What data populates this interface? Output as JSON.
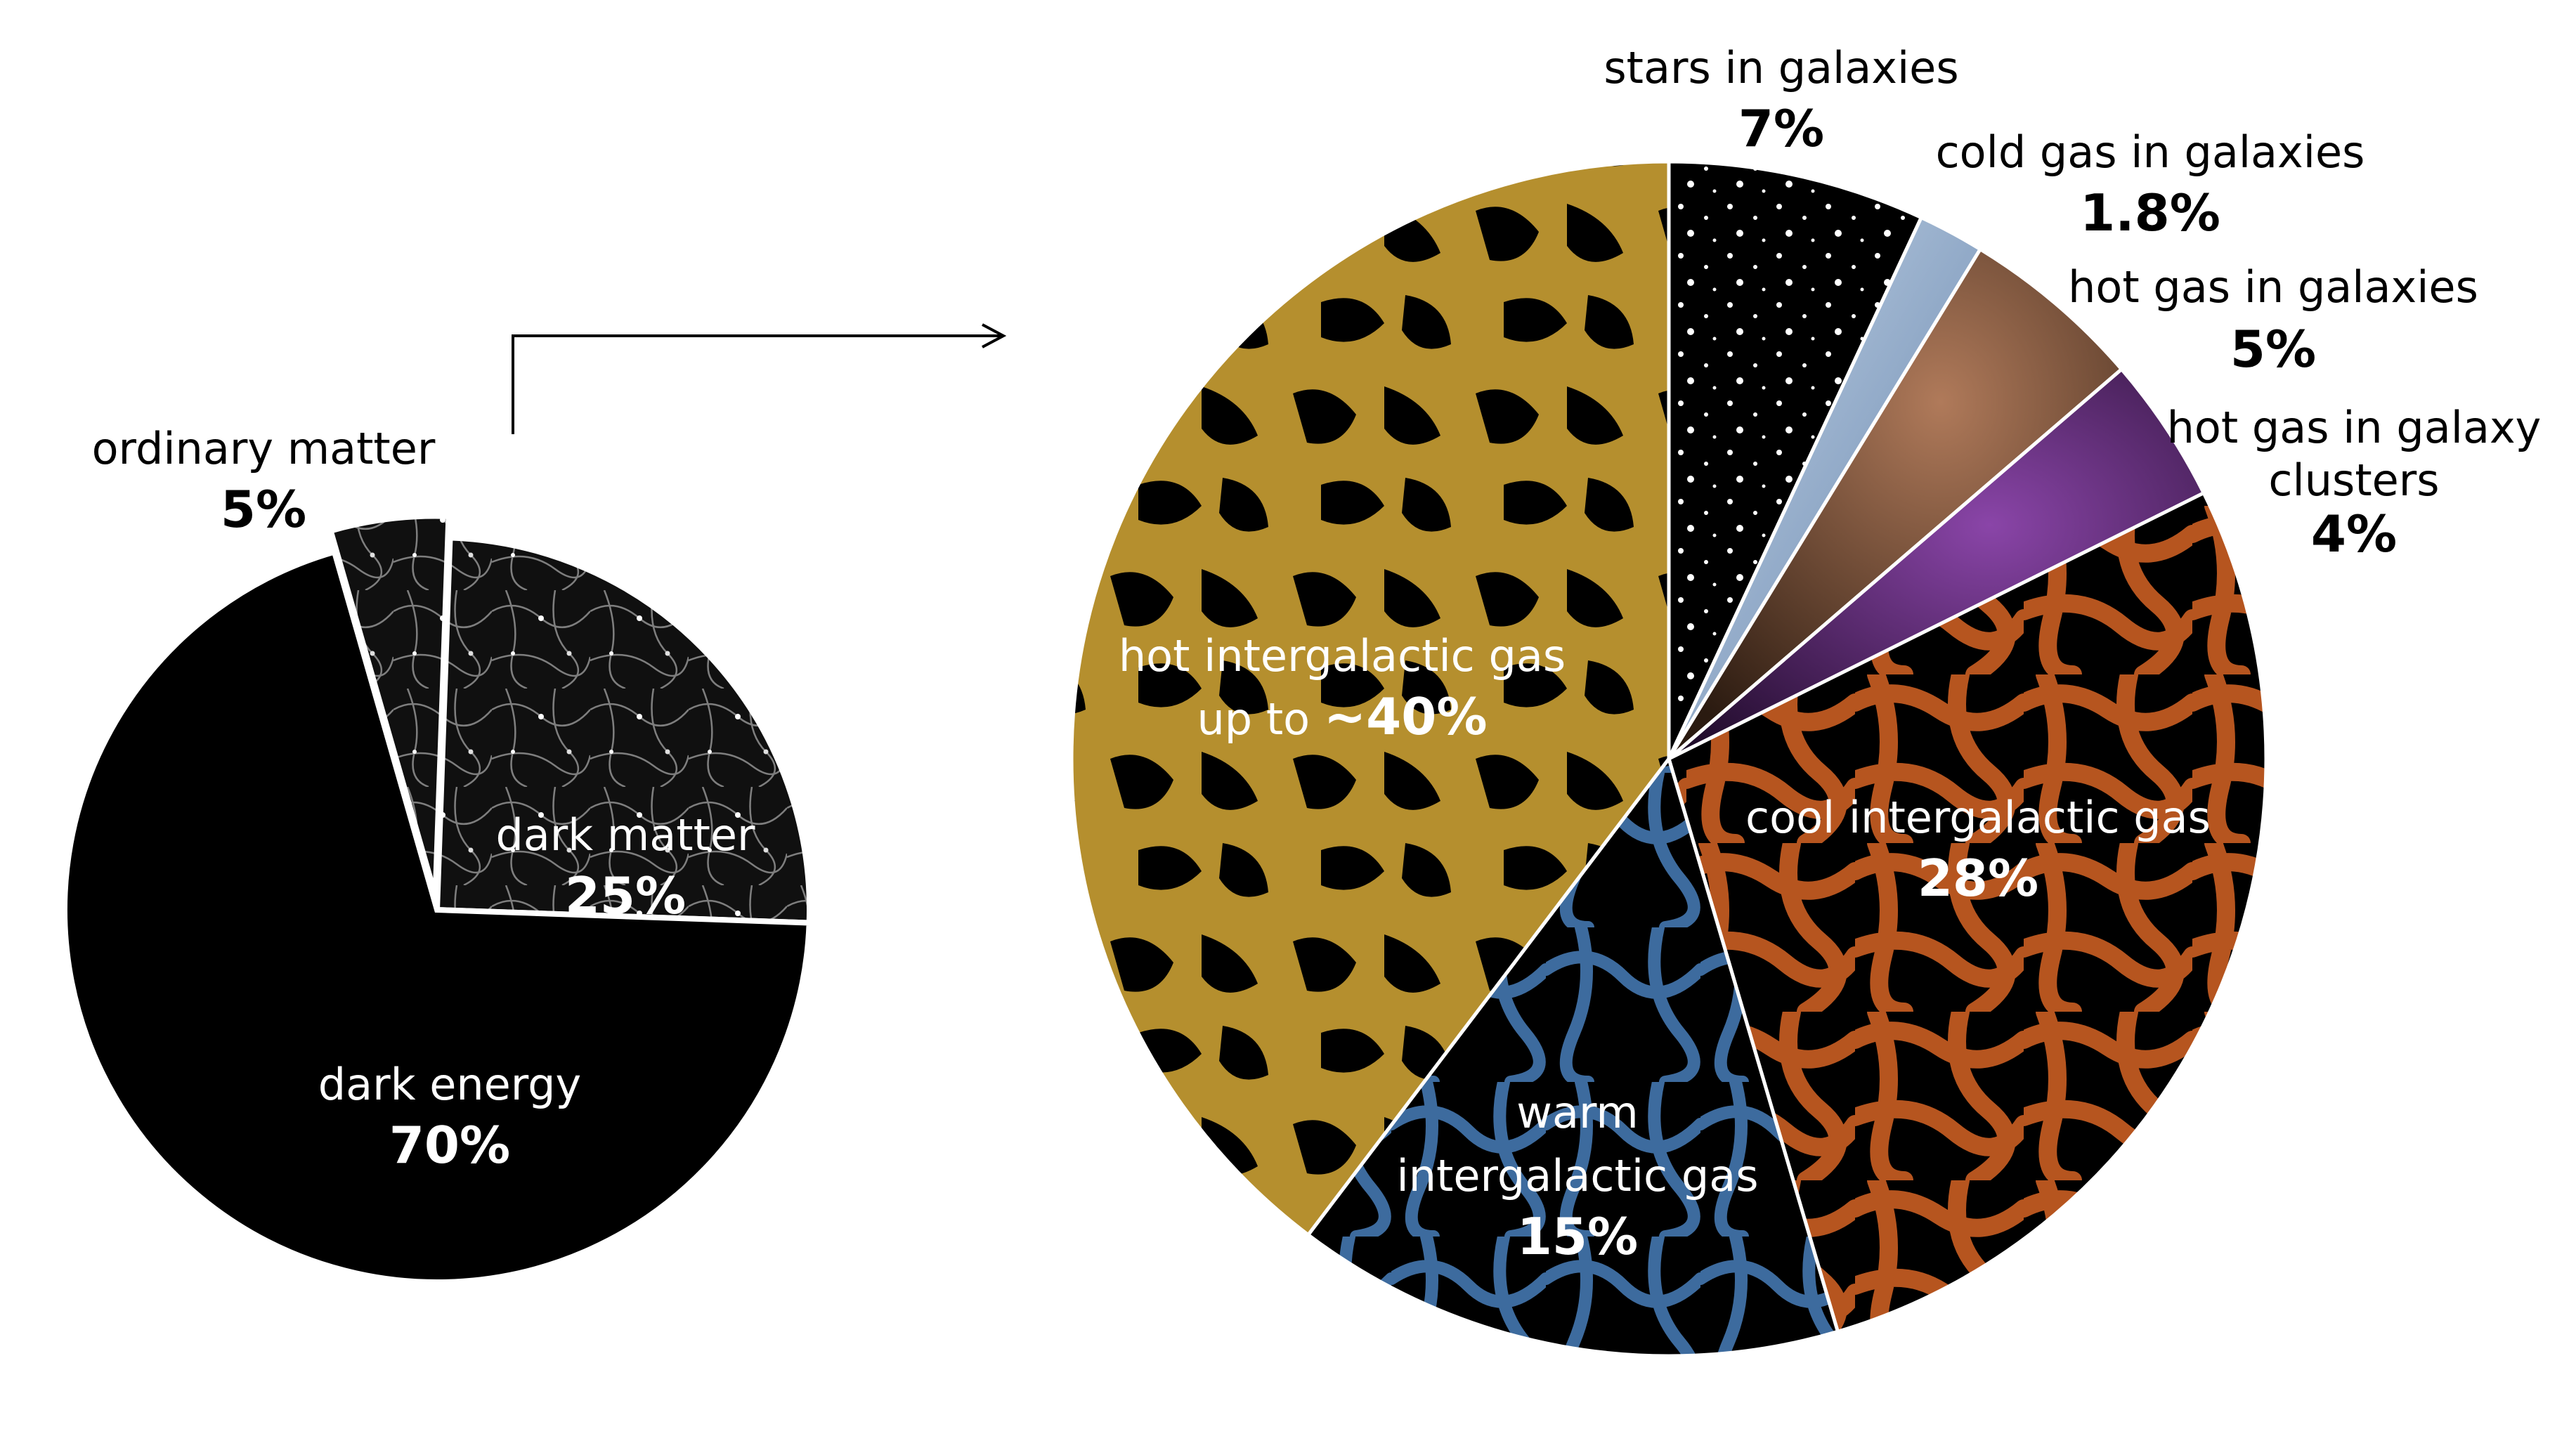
{
  "chart_data": [
    {
      "type": "pie",
      "title": "",
      "slices": [
        {
          "label": "dark energy",
          "value": 70,
          "value_text": "70%",
          "fill": "#000000",
          "texture": "solid"
        },
        {
          "label": "dark matter",
          "value": 25,
          "value_text": "25%",
          "fill": "#1a1a1a",
          "texture": "web"
        },
        {
          "label": "ordinary matter",
          "value": 5,
          "value_text": "5%",
          "fill": "#2a2a2a",
          "texture": "web",
          "exploded": true
        }
      ],
      "legend": "none",
      "labels": "inline",
      "connector": "arrow from 'ordinary matter' slice to the right-hand pie"
    },
    {
      "type": "pie",
      "title": "",
      "slices": [
        {
          "label": "stars in galaxies",
          "value": 7,
          "value_text": "7%",
          "fill": "#000000",
          "accent": "#ffffff",
          "texture": "dots"
        },
        {
          "label": "cold gas in galaxies",
          "value": 1.8,
          "value_text": "1.8%",
          "fill": "#8fa8c8",
          "accent": "#c8d8ea",
          "texture": "solid"
        },
        {
          "label": "hot gas in galaxies",
          "value": 5,
          "value_text": "5%",
          "fill": "#6b4530",
          "accent": "#b07a5a",
          "texture": "haze"
        },
        {
          "label": "hot gas in galaxy clusters",
          "label_lines": [
            "hot gas in galaxy",
            "clusters"
          ],
          "value": 4,
          "value_text": "4%",
          "fill": "#4a1f5e",
          "accent": "#9b5bb8",
          "texture": "haze"
        },
        {
          "label": "cool intergalactic gas",
          "value": 28,
          "value_text": "28%",
          "fill": "#b6551f",
          "accent": "#000000",
          "texture": "web"
        },
        {
          "label": "warm intergalactic gas",
          "label_lines": [
            "warm",
            "intergalactic gas"
          ],
          "value": 15,
          "value_text": "15%",
          "fill": "#3d6b9e",
          "accent": "#000000",
          "texture": "web"
        },
        {
          "label": "hot intergalactic gas",
          "label_lines": [
            "hot intergalactic gas",
            "up to ~40%"
          ],
          "value": 40,
          "value_text": "~40%",
          "prefix_text": "up to ",
          "fill": "#b58f2e",
          "accent": "#000000",
          "texture": "web"
        }
      ],
      "legend": "none",
      "labels": "inline and outside"
    }
  ]
}
